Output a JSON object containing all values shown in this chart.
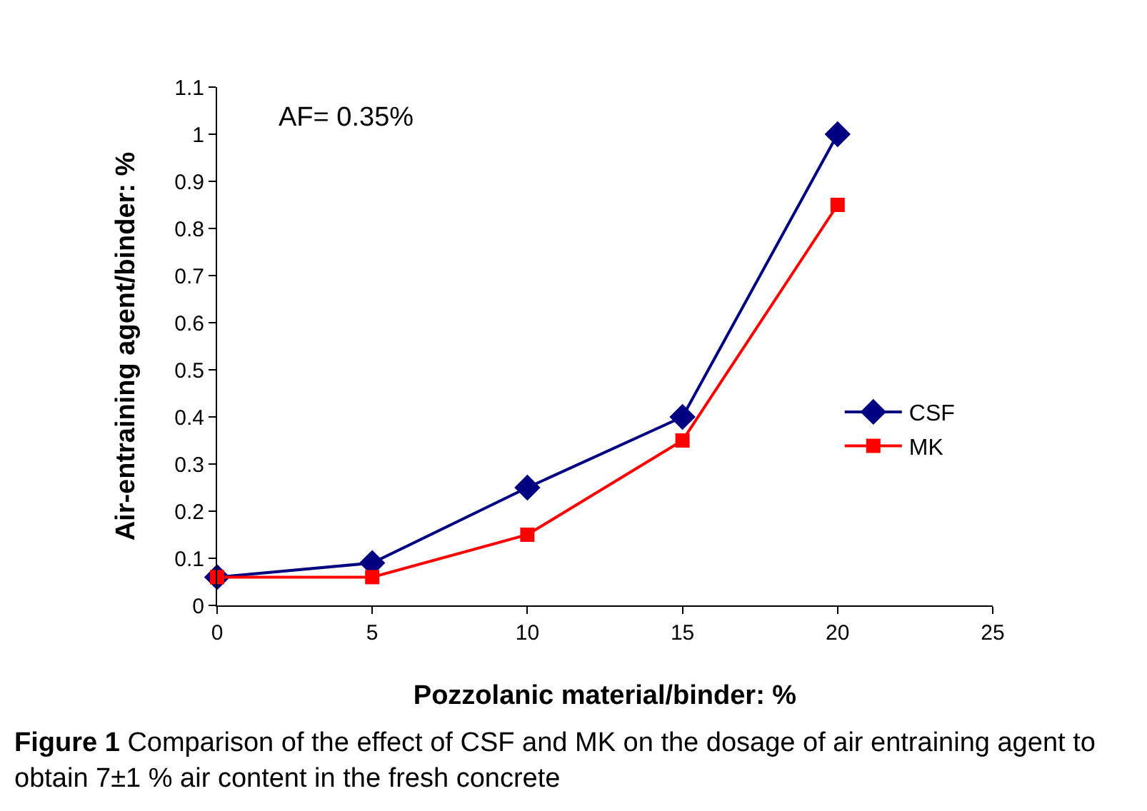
{
  "chart_data": {
    "type": "line",
    "xlabel": "Pozzolanic material/binder: %",
    "ylabel": "Air-entraining agent/binder: %",
    "x": [
      0,
      5,
      10,
      15,
      20
    ],
    "series": [
      {
        "name": "CSF",
        "color": "#000080",
        "marker": "diamond",
        "values": [
          0.06,
          0.09,
          0.25,
          0.4,
          1.0
        ]
      },
      {
        "name": "MK",
        "color": "#ff0000",
        "marker": "square",
        "values": [
          0.06,
          0.06,
          0.15,
          0.35,
          0.85
        ]
      }
    ],
    "xlim": [
      0,
      25
    ],
    "xticks": [
      0,
      5,
      10,
      15,
      20,
      25
    ],
    "ylim": [
      0,
      1.1
    ],
    "yticks": [
      0,
      0.1,
      0.2,
      0.3,
      0.4,
      0.5,
      0.6,
      0.7,
      0.8,
      0.9,
      1,
      1.1
    ],
    "grid": false,
    "legend": "right",
    "line_style": "solid",
    "annotations": [
      "AF= 0.35%",
      "Figure 1",
      "Comparison of the effect of CSF and MK on the dosage of air entraining agent to obtain 7±1 % air content in the fresh concrete"
    ]
  }
}
